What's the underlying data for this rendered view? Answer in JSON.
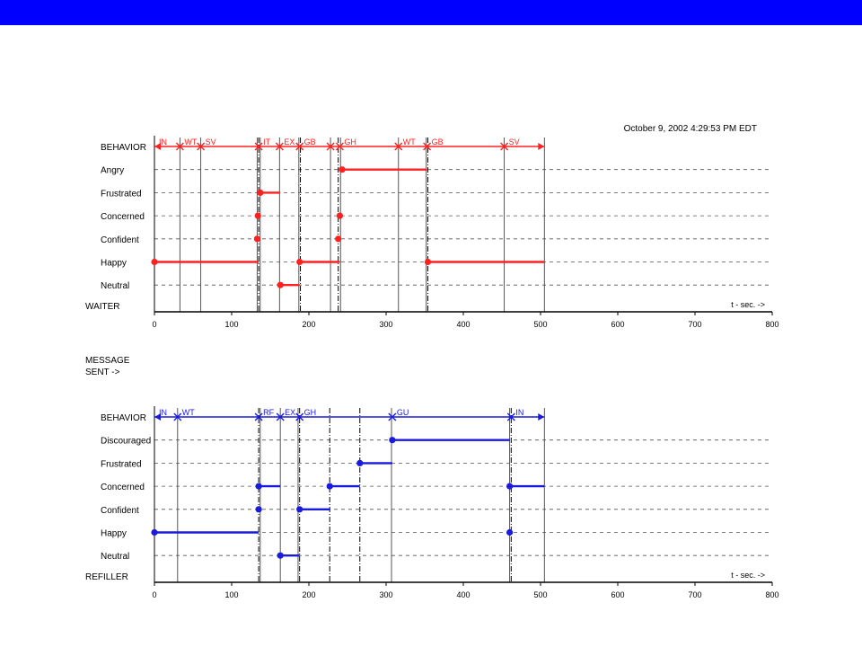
{
  "colors": {
    "top_bar": "#0000ff",
    "waiter": "#ff2020",
    "refiller": "#1a1adc",
    "axis": "#000000",
    "dashed": "#555555"
  },
  "timestamp": "October 9, 2002 4:29:53 PM EDT",
  "message_sent_label": [
    "MESSAGE",
    "SENT ->"
  ],
  "chart_data": [
    {
      "type": "line",
      "agent_label": "WAITER",
      "color_key": "waiter",
      "xlim": [
        0,
        800
      ],
      "xticks": [
        0,
        100,
        200,
        300,
        400,
        500,
        600,
        700,
        800
      ],
      "x_unit_label": "t - sec. ->",
      "row_labels": [
        "BEHAVIOR",
        "Angry",
        "Frustrated",
        "Concerned",
        "Confident",
        "Happy",
        "Neutral"
      ],
      "behavior_end": 505,
      "behavior_markers": [
        {
          "t": 0,
          "label": "IN"
        },
        {
          "t": 33,
          "label": "WT"
        },
        {
          "t": 60,
          "label": "SV"
        },
        {
          "t": 135,
          "label": "IT"
        },
        {
          "t": 162,
          "label": "EX"
        },
        {
          "t": 188,
          "label": "GB"
        },
        {
          "t": 228,
          "label": ""
        },
        {
          "t": 240,
          "label": "GH"
        },
        {
          "t": 316,
          "label": "WT"
        },
        {
          "t": 353,
          "label": "GB"
        },
        {
          "t": 453,
          "label": "SV"
        }
      ],
      "vlines": [
        {
          "t": 33,
          "style": "solid"
        },
        {
          "t": 60,
          "style": "solid"
        },
        {
          "t": 133,
          "style": "solid"
        },
        {
          "t": 135,
          "style": "dashdot"
        },
        {
          "t": 137,
          "style": "solid"
        },
        {
          "t": 162,
          "style": "solid"
        },
        {
          "t": 187,
          "style": "solid"
        },
        {
          "t": 189,
          "style": "dashdot"
        },
        {
          "t": 228,
          "style": "solid"
        },
        {
          "t": 238,
          "style": "dashdot"
        },
        {
          "t": 241,
          "style": "solid"
        },
        {
          "t": 316,
          "style": "solid"
        },
        {
          "t": 352,
          "style": "solid"
        },
        {
          "t": 354,
          "style": "dashdot"
        },
        {
          "t": 453,
          "style": "solid"
        },
        {
          "t": 505,
          "style": "solid"
        }
      ],
      "segments": [
        {
          "row": "Angry",
          "start": 243,
          "end": 353
        },
        {
          "row": "Frustrated",
          "start": 137,
          "end": 163
        },
        {
          "row": "Concerned",
          "start": 134,
          "end": null
        },
        {
          "row": "Concerned",
          "start": 240,
          "end": null
        },
        {
          "row": "Confident",
          "start": 133,
          "end": null
        },
        {
          "row": "Confident",
          "start": 238,
          "end": null
        },
        {
          "row": "Happy",
          "start": 0,
          "end": 135
        },
        {
          "row": "Happy",
          "start": 188,
          "end": 240
        },
        {
          "row": "Happy",
          "start": 354,
          "end": 505
        },
        {
          "row": "Neutral",
          "start": 163,
          "end": 188
        }
      ]
    },
    {
      "type": "line",
      "agent_label": "REFILLER",
      "color_key": "refiller",
      "xlim": [
        0,
        800
      ],
      "xticks": [
        0,
        100,
        200,
        300,
        400,
        500,
        600,
        700,
        800
      ],
      "x_unit_label": "t - sec. ->",
      "row_labels": [
        "BEHAVIOR",
        "Discouraged",
        "Frustrated",
        "Concerned",
        "Confident",
        "Happy",
        "Neutral"
      ],
      "behavior_end": 505,
      "behavior_markers": [
        {
          "t": 0,
          "label": "IN"
        },
        {
          "t": 30,
          "label": "WT"
        },
        {
          "t": 135,
          "label": "RF"
        },
        {
          "t": 163,
          "label": "EX"
        },
        {
          "t": 188,
          "label": "GH"
        },
        {
          "t": 308,
          "label": "GU"
        },
        {
          "t": 462,
          "label": "IN"
        }
      ],
      "vlines": [
        {
          "t": 30,
          "style": "solid"
        },
        {
          "t": 135,
          "style": "dashdot"
        },
        {
          "t": 137,
          "style": "solid"
        },
        {
          "t": 163,
          "style": "solid"
        },
        {
          "t": 186,
          "style": "solid"
        },
        {
          "t": 188,
          "style": "dashdot"
        },
        {
          "t": 227,
          "style": "dashdot"
        },
        {
          "t": 266,
          "style": "dashdot"
        },
        {
          "t": 307,
          "style": "solid"
        },
        {
          "t": 460,
          "style": "solid"
        },
        {
          "t": 462,
          "style": "dashdot"
        },
        {
          "t": 505,
          "style": "solid"
        }
      ],
      "segments": [
        {
          "row": "Discouraged",
          "start": 308,
          "end": 460
        },
        {
          "row": "Frustrated",
          "start": 266,
          "end": 308
        },
        {
          "row": "Concerned",
          "start": 135,
          "end": 163
        },
        {
          "row": "Concerned",
          "start": 227,
          "end": 266
        },
        {
          "row": "Concerned",
          "start": 460,
          "end": 505
        },
        {
          "row": "Confident",
          "start": 135,
          "end": null
        },
        {
          "row": "Confident",
          "start": 188,
          "end": 227
        },
        {
          "row": "Happy",
          "start": 0,
          "end": 135
        },
        {
          "row": "Happy",
          "start": 460,
          "end": null
        },
        {
          "row": "Neutral",
          "start": 163,
          "end": 188
        }
      ]
    }
  ]
}
